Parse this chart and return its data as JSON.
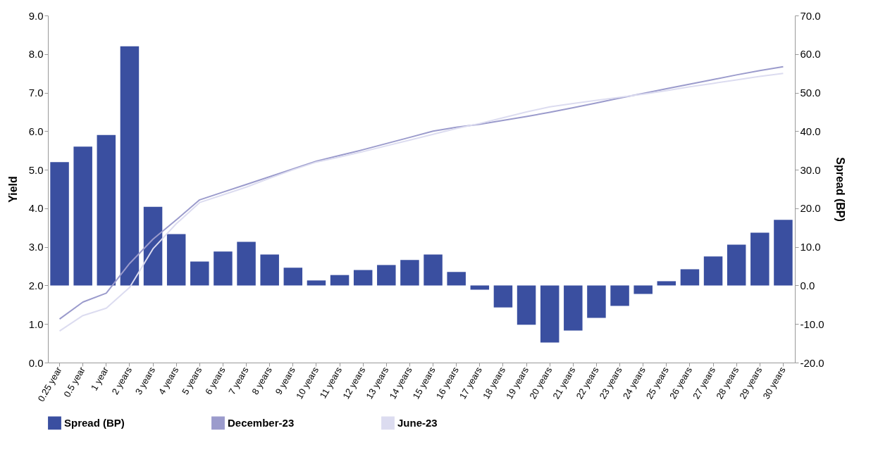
{
  "chart_data": {
    "type": "bar",
    "xlabel": null,
    "ylabel": "Yield",
    "y2label": "Spread (BP)",
    "categories": [
      "0.25 year",
      "0.5 year",
      "1 year",
      "2 years",
      "3 years",
      "4 years",
      "5 years",
      "6 years",
      "7 years",
      "8 years",
      "9 years",
      "10 years",
      "11 years",
      "12 years",
      "13 years",
      "14 years",
      "15 years",
      "16 years",
      "17 years",
      "18 years",
      "19 years",
      "20 years",
      "21 years",
      "22 years",
      "23 years",
      "24 years",
      "25 years",
      "26 years",
      "27 years",
      "28 years",
      "29 years",
      "30 years"
    ],
    "series": [
      {
        "name": "Spread (BP)",
        "axis": "y2",
        "color": "#3a4fa0",
        "values": [
          32,
          36,
          39,
          62,
          20.4,
          13.3,
          6.2,
          8.8,
          11.3,
          8.0,
          4.6,
          1.3,
          2.7,
          4.0,
          5.3,
          6.6,
          8.0,
          3.5,
          -1.1,
          -5.7,
          -10.2,
          -14.8,
          -11.7,
          -8.4,
          -5.3,
          -2.2,
          1.1,
          4.2,
          7.5,
          10.6,
          13.7,
          17.0
        ]
      },
      {
        "name": "December-23",
        "type": "line",
        "color": "#9b9bcc",
        "values": [
          1.13,
          1.57,
          1.8,
          2.57,
          3.2,
          3.7,
          4.22,
          4.42,
          4.62,
          4.82,
          5.02,
          5.22,
          5.37,
          5.52,
          5.68,
          5.84,
          6.0,
          6.1,
          6.18,
          6.28,
          6.38,
          6.49,
          6.61,
          6.73,
          6.86,
          6.98,
          7.1,
          7.22,
          7.34,
          7.46,
          7.57,
          7.67
        ]
      },
      {
        "name": "June-23",
        "type": "line",
        "color": "#dcdcf0",
        "values": [
          0.82,
          1.22,
          1.41,
          1.95,
          2.95,
          3.6,
          4.15,
          4.35,
          4.55,
          4.78,
          5.0,
          5.2,
          5.33,
          5.47,
          5.62,
          5.77,
          5.92,
          6.07,
          6.2,
          6.35,
          6.5,
          6.63,
          6.72,
          6.8,
          6.88,
          6.96,
          7.05,
          7.15,
          7.24,
          7.33,
          7.42,
          7.5
        ]
      }
    ],
    "ylim": [
      0,
      9
    ],
    "yticks": [
      {
        "value": 0,
        "label": "0.0"
      },
      {
        "value": 1,
        "label": "1.0"
      },
      {
        "value": 2,
        "label": "2.0"
      },
      {
        "value": 3,
        "label": "3.0"
      },
      {
        "value": 4,
        "label": "4.0"
      },
      {
        "value": 5,
        "label": "5.0"
      },
      {
        "value": 6,
        "label": "6.0"
      },
      {
        "value": 7,
        "label": "7.0"
      },
      {
        "value": 8,
        "label": "8.0"
      },
      {
        "value": 9,
        "label": "9.0"
      }
    ],
    "y2lim": [
      -20,
      70
    ],
    "y2ticks": [
      {
        "value": -20,
        "label": "-20.0"
      },
      {
        "value": -10,
        "label": "-10.0"
      },
      {
        "value": 0,
        "label": "0.0"
      },
      {
        "value": 10,
        "label": "10.0"
      },
      {
        "value": 20,
        "label": "20.0"
      },
      {
        "value": 30,
        "label": "30.0"
      },
      {
        "value": 40,
        "label": "40.0"
      },
      {
        "value": 50,
        "label": "50.0"
      },
      {
        "value": 60,
        "label": "60.0"
      },
      {
        "value": 70,
        "label": "70.0"
      }
    ],
    "grid": false,
    "legend": "bottom"
  }
}
